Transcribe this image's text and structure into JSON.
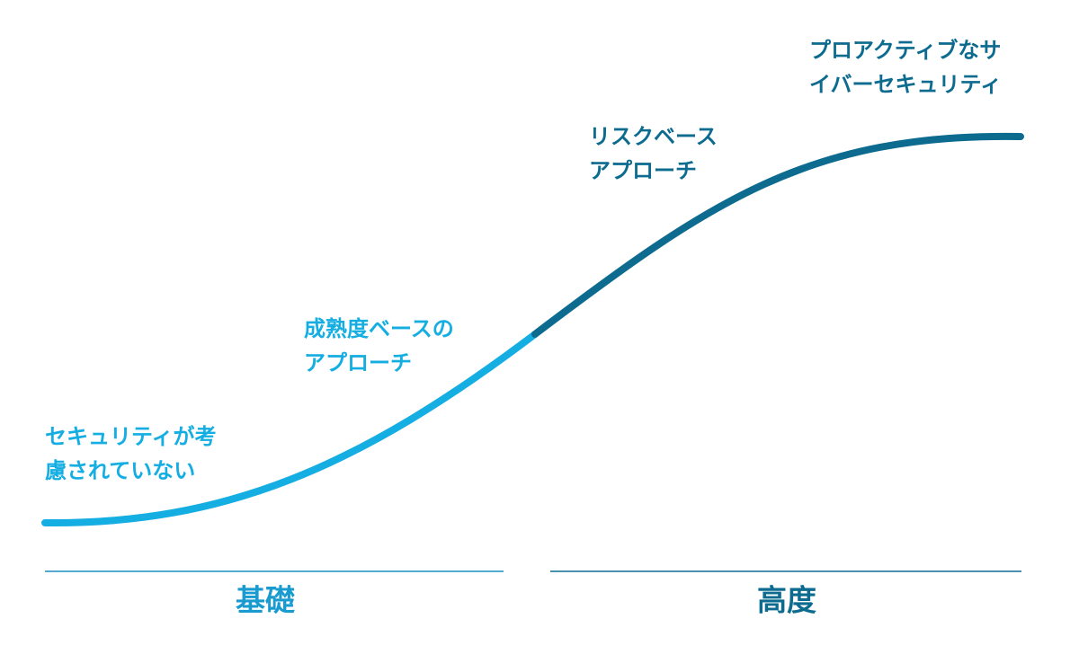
{
  "stages": [
    {
      "lines": [
        "セキュリティが考",
        "慮されていない"
      ]
    },
    {
      "lines": [
        "成熟度ベースの",
        "アプローチ"
      ]
    },
    {
      "lines": [
        "リスクベース",
        "アプローチ"
      ]
    },
    {
      "lines": [
        "プロアクティブなサ",
        "イバーセキュリティ"
      ]
    }
  ],
  "sections": [
    {
      "label": "基礎"
    },
    {
      "label": "高度"
    }
  ]
}
